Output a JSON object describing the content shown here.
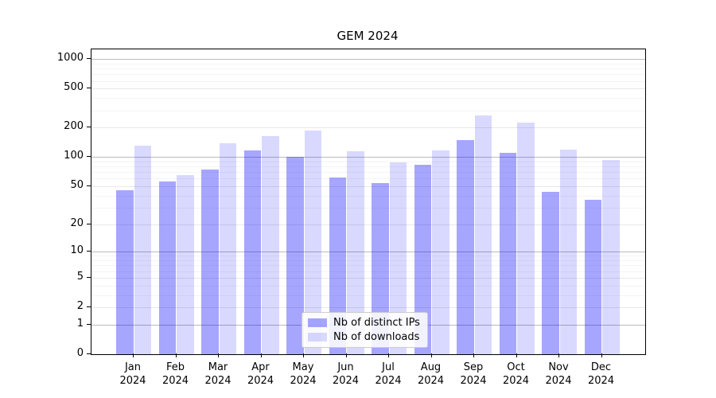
{
  "chart_data": {
    "type": "bar",
    "title": "GEM 2024",
    "scale": "log1p (symlog-like: y = log10(1+value))",
    "categories": [
      "Jan",
      "Feb",
      "Mar",
      "Apr",
      "May",
      "Jun",
      "Jul",
      "Aug",
      "Sep",
      "Oct",
      "Nov",
      "Dec"
    ],
    "year_suffix": "2024",
    "series": [
      {
        "name": "Nb of distinct IPs",
        "color": "rgba(0,0,255,0.35)",
        "values": [
          45,
          56,
          75,
          116,
          101,
          62,
          54,
          84,
          150,
          110,
          44,
          36
        ]
      },
      {
        "name": "Nb of downloads",
        "color": "rgba(0,0,255,0.15)",
        "values": [
          130,
          65,
          138,
          164,
          186,
          114,
          88,
          116,
          265,
          225,
          118,
          93
        ]
      }
    ],
    "yticks": [
      0,
      1,
      2,
      5,
      10,
      20,
      50,
      100,
      200,
      500,
      1000
    ],
    "ylim": [
      0,
      1255
    ],
    "xlabel": "",
    "ylabel": "",
    "grid": "on",
    "legend_position": "lower center (inside axes)",
    "colors": {
      "grid_major_power10": "#bbbbbb",
      "grid_labeled": "#e8e8e8",
      "grid_minor": "#f4f4f4",
      "axis_spine": "#000000",
      "legend_border": "#cccccc"
    }
  }
}
